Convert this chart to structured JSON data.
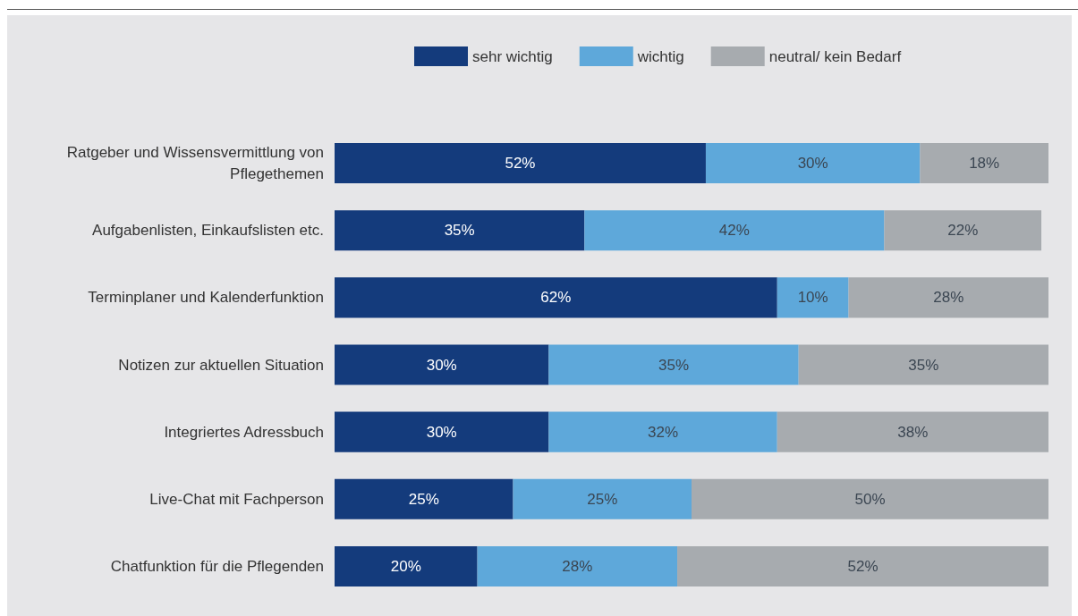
{
  "chart_data": {
    "type": "bar",
    "orientation": "horizontal",
    "stacked": true,
    "legend": "top",
    "categories": [
      "Ratgeber und Wissensvermittlung von\nPflegethemen",
      "Aufgabenlisten, Einkaufslisten etc.",
      "Terminplaner und Kalenderfunktion",
      "Notizen zur aktuellen Situation",
      "Integriertes Adressbuch",
      "Live-Chat mit Fachperson",
      "Chatfunktion für die Pflegenden"
    ],
    "series": [
      {
        "name": "sehr wichtig",
        "color": "#143b7c",
        "values": [
          52,
          35,
          62,
          30,
          30,
          25,
          20
        ],
        "value_labels": [
          "52%",
          "35%",
          "62%",
          "30%",
          "30%",
          "25%",
          "20%"
        ]
      },
      {
        "name": "wichtig",
        "color": "#5ea8da",
        "values": [
          30,
          42,
          10,
          35,
          32,
          25,
          28
        ],
        "value_labels": [
          "30%",
          "42%",
          "10%",
          "35%",
          "32%",
          "25%",
          "28%"
        ]
      },
      {
        "name": "neutral/ kein Bedarf",
        "color": "#a7abaf",
        "values": [
          18,
          22,
          28,
          35,
          38,
          50,
          52
        ],
        "value_labels": [
          "18%",
          "22%",
          "28%",
          "35%",
          "38%",
          "50%",
          "52%"
        ]
      }
    ]
  }
}
